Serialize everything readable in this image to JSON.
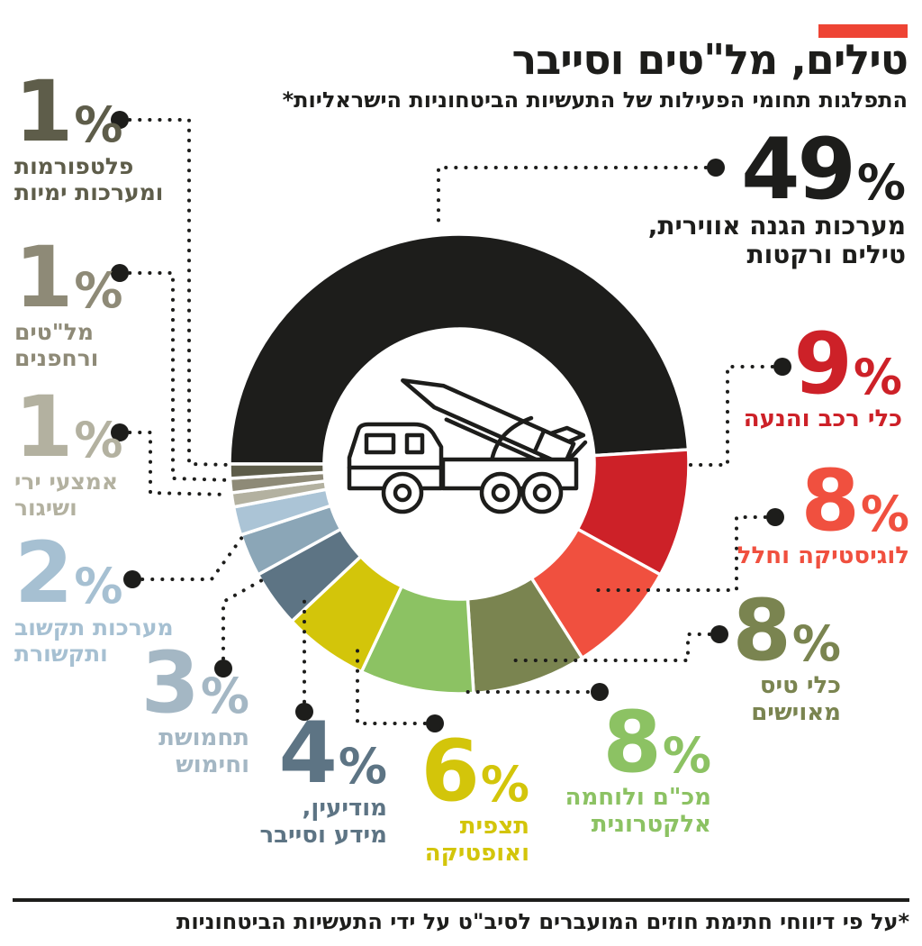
{
  "title": "טילים, מל\"טים וסייבר",
  "subtitle": "התפלגות תחומי הפעילות של התעשיות הביטחוניות הישראליות*",
  "footnote": "*על פי דיווחי חתימת חוזים המועברים לסיב\"ט על ידי התעשיות הביטחוניות",
  "accent_color": "#ee4434",
  "chart_data": {
    "type": "pie",
    "donut": true,
    "title": "התפלגות תחומי הפעילות של התעשיות הביטחוניות הישראליות",
    "unit": "%",
    "start_angle_deg": 180,
    "direction": "clockwise",
    "center_icon": "missile-truck",
    "segments": [
      {
        "label": "מערכות הגנה אווירית, טילים ורקטות",
        "value": 49,
        "color": "#1d1d1b"
      },
      {
        "label": "כלי רכב והנעה",
        "value": 9,
        "color": "#cd2128"
      },
      {
        "label": "לוגיסטיקה וחלל",
        "value": 8,
        "color": "#f0503f"
      },
      {
        "label": "כלי טיס מאוישים",
        "value": 8,
        "color": "#7a8450"
      },
      {
        "label": "מכ\"ם ולוחמה אלקטרונית",
        "value": 8,
        "color": "#8cc263"
      },
      {
        "label": "תצפית ואופטיקה",
        "value": 6,
        "color": "#d3c50a"
      },
      {
        "label": "מודיעין, מידע וסייבר",
        "value": 4,
        "color": "#5d7484"
      },
      {
        "label": "תחמושת וחימוש",
        "value": 3,
        "color": "#8ba6b7"
      },
      {
        "label": "מערכות תקשוב ותקשורת",
        "value": 2,
        "color": "#abc4d6"
      },
      {
        "label": "אמצעי ירי ושיגור",
        "value": 1,
        "color": "#b3b1a0"
      },
      {
        "label": "מל\"טים ורחפנים",
        "value": 1,
        "color": "#8e8a77"
      },
      {
        "label": "פלטפורמות ומערכות ימיות",
        "value": 1,
        "color": "#5e5d4a"
      }
    ]
  },
  "callouts": [
    {
      "id": "air-defense-missiles",
      "value": 49,
      "color": "#1d1d1b",
      "lines": [
        "מערכות הגנה אווירית,",
        "טילים ורקטות"
      ]
    },
    {
      "id": "vehicles-propulsion",
      "value": 9,
      "color": "#cd2128",
      "lines": [
        "כלי רכב והנעה"
      ]
    },
    {
      "id": "logistics-space",
      "value": 8,
      "color": "#f0503f",
      "lines": [
        "לוגיסטיקה וחלל"
      ]
    },
    {
      "id": "manned-aircraft",
      "value": 8,
      "color": "#7a8450",
      "lines": [
        "כלי טיס",
        "מאוישים"
      ]
    },
    {
      "id": "radar-electronic-warfare",
      "value": 8,
      "color": "#8cc263",
      "lines": [
        "מכ\"ם ולוחמה",
        "אלקטרונית"
      ]
    },
    {
      "id": "observation-optics",
      "value": 6,
      "color": "#d3c50a",
      "lines": [
        "תצפית",
        "ואופטיקה"
      ]
    },
    {
      "id": "intelligence-cyber",
      "value": 4,
      "color": "#5d7484",
      "lines": [
        "מודיעין,",
        "מידע וסייבר"
      ]
    },
    {
      "id": "ammunition-armament",
      "value": 3,
      "color": "#a4b7c4",
      "lines": [
        "תחמושת",
        "וחימוש"
      ]
    },
    {
      "id": "ict-communications",
      "value": 2,
      "color": "#a6c0d2",
      "lines": [
        "מערכות תקשוב",
        "ותקשורת"
      ]
    },
    {
      "id": "firing-launching",
      "value": 1,
      "color": "#b3b1a0",
      "lines": [
        "אמצעי ירי",
        "ושיגור"
      ]
    },
    {
      "id": "uav-drones",
      "value": 1,
      "color": "#8e8a77",
      "lines": [
        "מל\"טים",
        "ורחפנים"
      ]
    },
    {
      "id": "naval-platforms",
      "value": 1,
      "color": "#5e5d4a",
      "lines": [
        "פלטפורמות",
        "ומערכות ימיות"
      ]
    }
  ]
}
